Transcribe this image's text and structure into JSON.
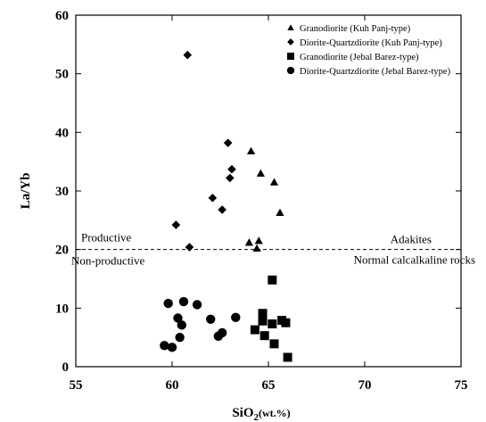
{
  "chart_data": {
    "type": "scatter",
    "title": "",
    "xlabel_main": "SiO",
    "xlabel_sub": "2",
    "xlabel_unit": "(wt.%)",
    "ylabel": "La/Yb",
    "xlim": [
      55,
      75
    ],
    "ylim": [
      0,
      60
    ],
    "xticks": [
      55,
      60,
      65,
      70,
      75
    ],
    "yticks": [
      0,
      10,
      20,
      30,
      40,
      50,
      60
    ],
    "grid": false,
    "legend_position": "top-right",
    "series": [
      {
        "name": "Granodiorite (Kuh Panj-type)",
        "marker": "triangle",
        "points": [
          [
            64.1,
            36.8
          ],
          [
            64.6,
            33.0
          ],
          [
            65.3,
            31.5
          ],
          [
            65.6,
            26.3
          ],
          [
            64.0,
            21.2
          ],
          [
            64.5,
            21.5
          ],
          [
            64.4,
            20.2
          ]
        ]
      },
      {
        "name": "Diorite-Quartzdiorite (Kuh Panj-type)",
        "marker": "diamond",
        "points": [
          [
            60.8,
            53.2
          ],
          [
            62.9,
            38.2
          ],
          [
            63.1,
            33.7
          ],
          [
            63.0,
            32.2
          ],
          [
            62.1,
            28.8
          ],
          [
            62.6,
            26.8
          ],
          [
            60.2,
            24.2
          ],
          [
            60.9,
            20.4
          ]
        ]
      },
      {
        "name": "Granodiorite (Jebal Barez-type)",
        "marker": "square",
        "points": [
          [
            65.2,
            14.8
          ],
          [
            64.7,
            9.1
          ],
          [
            64.7,
            7.8
          ],
          [
            65.2,
            7.3
          ],
          [
            65.7,
            7.9
          ],
          [
            65.9,
            7.5
          ],
          [
            64.3,
            6.3
          ],
          [
            64.8,
            5.3
          ],
          [
            65.3,
            3.9
          ],
          [
            66.0,
            1.6
          ]
        ]
      },
      {
        "name": "Diorite-Quartzdiorite (Jebal Barez-type)",
        "marker": "circle",
        "points": [
          [
            59.8,
            10.8
          ],
          [
            60.6,
            11.1
          ],
          [
            61.3,
            10.6
          ],
          [
            60.3,
            8.3
          ],
          [
            62.0,
            8.1
          ],
          [
            63.3,
            8.4
          ],
          [
            60.5,
            7.1
          ],
          [
            62.6,
            5.8
          ],
          [
            62.4,
            5.2
          ],
          [
            60.4,
            5.0
          ],
          [
            59.6,
            3.6
          ],
          [
            60.0,
            3.3
          ]
        ]
      }
    ],
    "reference_line": {
      "y": 20,
      "style": "dashed"
    },
    "annotations": {
      "productive": "Productive",
      "non_productive": "Non-productive",
      "adakites": "Adakites",
      "normal": "Normal calcalkaline rocks"
    }
  }
}
